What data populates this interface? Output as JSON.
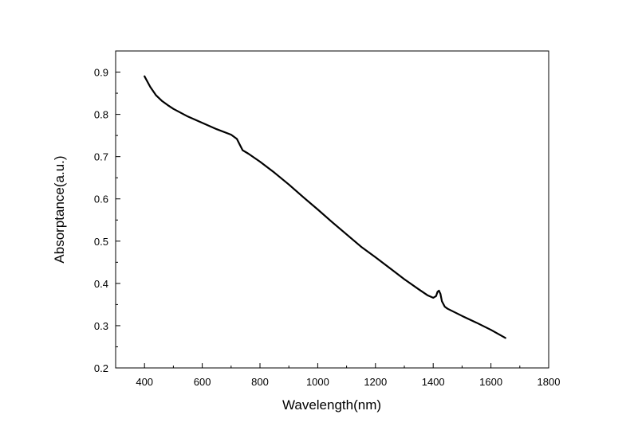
{
  "chart_data": {
    "type": "line",
    "title": "",
    "xlabel": "Wavelength(nm)",
    "ylabel": "Absorptance(a.u.)",
    "xlim": [
      300,
      1800
    ],
    "ylim": [
      0.2,
      0.95
    ],
    "xticks": [
      400,
      600,
      800,
      1000,
      1200,
      1400,
      1600,
      1800
    ],
    "yticks": [
      0.2,
      0.3,
      0.4,
      0.5,
      0.6,
      0.7,
      0.8,
      0.9
    ],
    "xtick_labels": [
      "400",
      "600",
      "800",
      "1000",
      "1200",
      "1400",
      "1600",
      "1800"
    ],
    "ytick_labels": [
      "0.2",
      "0.3",
      "0.4",
      "0.5",
      "0.6",
      "0.7",
      "0.8",
      "0.9"
    ],
    "grid": false,
    "legend": "none",
    "line_color": "#000000",
    "series": [
      {
        "x": [
          400,
          420,
          440,
          460,
          480,
          500,
          550,
          600,
          650,
          700,
          720,
          730,
          740,
          760,
          800,
          850,
          900,
          950,
          1000,
          1050,
          1100,
          1150,
          1200,
          1250,
          1300,
          1350,
          1380,
          1400,
          1410,
          1415,
          1420,
          1425,
          1430,
          1440,
          1450,
          1500,
          1550,
          1600,
          1650
        ],
        "y": [
          0.89,
          0.865,
          0.845,
          0.832,
          0.822,
          0.813,
          0.795,
          0.78,
          0.765,
          0.752,
          0.742,
          0.728,
          0.715,
          0.707,
          0.688,
          0.662,
          0.634,
          0.604,
          0.575,
          0.545,
          0.516,
          0.487,
          0.462,
          0.436,
          0.41,
          0.386,
          0.372,
          0.366,
          0.37,
          0.38,
          0.383,
          0.375,
          0.358,
          0.345,
          0.34,
          0.323,
          0.307,
          0.29,
          0.271
        ]
      }
    ]
  }
}
